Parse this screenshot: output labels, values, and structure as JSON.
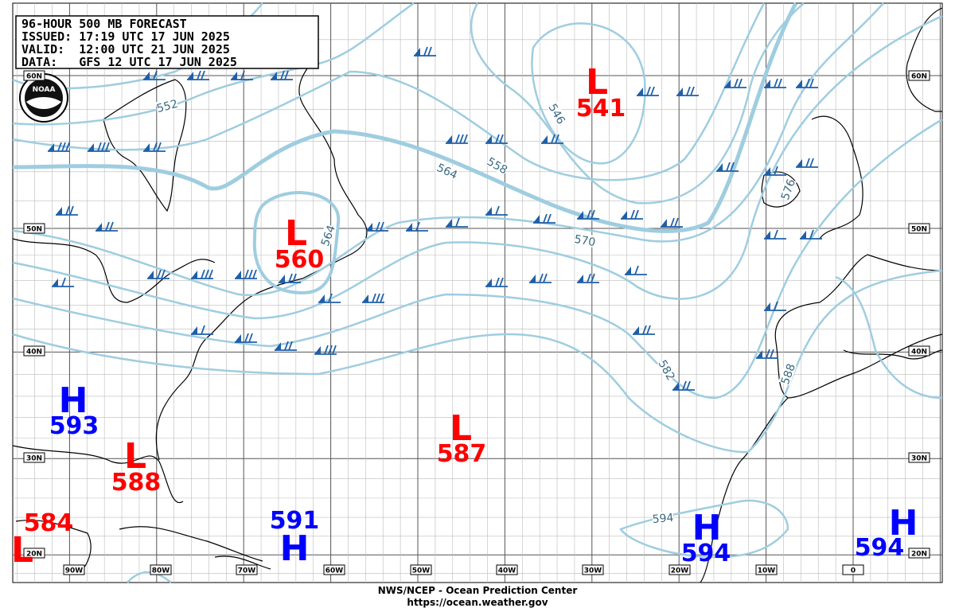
{
  "header": {
    "lines": [
      "96-HOUR 500 MB FORECAST",
      "ISSUED: 17:19 UTC 17 JUN 2025",
      "VALID:  12:00 UTC 21 JUN 2025",
      "DATA:   GFS 12 UTC 17 JUN 2025"
    ]
  },
  "logo": "NOAA",
  "center_colors": {
    "L": "#ff0000",
    "H": "#0000ff"
  },
  "centers": [
    {
      "type": "L",
      "value": 541
    },
    {
      "type": "L",
      "value": 560
    },
    {
      "type": "H",
      "value": 593
    },
    {
      "type": "L",
      "value": 588
    },
    {
      "type": "L",
      "value": 587
    },
    {
      "type": "L",
      "value": 584
    },
    {
      "type": "H",
      "value": 591
    },
    {
      "type": "H",
      "value": 594
    },
    {
      "type": "H",
      "value": 594
    }
  ],
  "contour_labels": [
    552,
    546,
    558,
    564,
    564,
    570,
    576,
    582,
    588,
    594
  ],
  "lat_labels": [
    "60N",
    "50N",
    "40N",
    "30N",
    "20N"
  ],
  "lon_labels": [
    "90W",
    "80W",
    "70W",
    "60W",
    "50W",
    "40W",
    "30W",
    "20W",
    "10W",
    "0"
  ],
  "footer": [
    "NWS/NCEP - Ocean Prediction Center",
    "https://ocean.weather.gov"
  ]
}
